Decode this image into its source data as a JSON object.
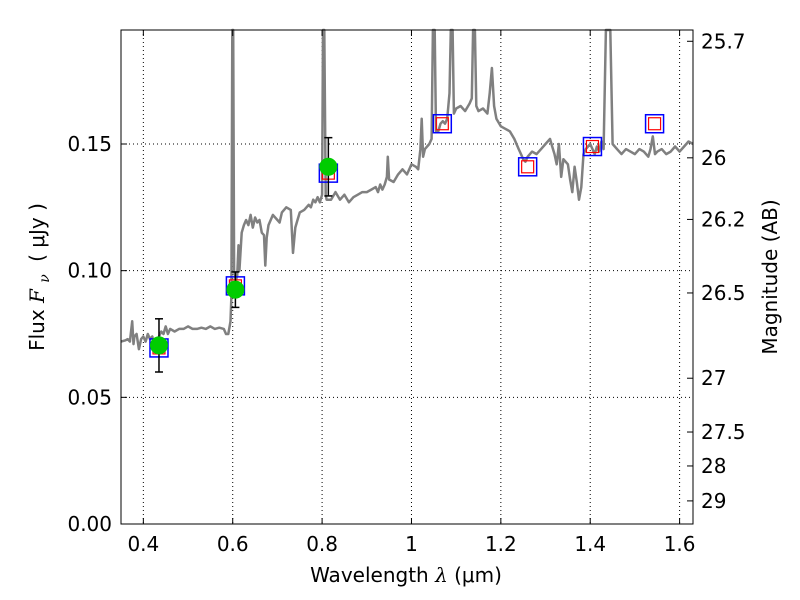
{
  "chart_data": {
    "type": "scatter",
    "xlabel_prefix": "Wavelength ",
    "xlabel_symbol": "λ",
    "xlabel_unit": "(μm)",
    "ylabel_prefix": "Flux ",
    "ylabel_symbol": "F",
    "ylabel_sub": "ν",
    "ylabel_unit": "( μJy )",
    "y2label": "Magnitude (AB)",
    "xlim": [
      0.35,
      1.63
    ],
    "ylim": [
      0.0,
      0.195
    ],
    "x_ticks": [
      {
        "value": 0.4,
        "label": "0.4"
      },
      {
        "value": 0.6,
        "label": "0.6"
      },
      {
        "value": 0.8,
        "label": "0.8"
      },
      {
        "value": 1.0,
        "label": "1"
      },
      {
        "value": 1.2,
        "label": "1.2"
      },
      {
        "value": 1.4,
        "label": "1.4"
      },
      {
        "value": 1.6,
        "label": "1.6"
      }
    ],
    "y_ticks": [
      {
        "value": 0.0,
        "label": "0.00"
      },
      {
        "value": 0.05,
        "label": "0.05"
      },
      {
        "value": 0.1,
        "label": "0.10"
      },
      {
        "value": 0.15,
        "label": "0.15"
      }
    ],
    "mag_ticks": [
      {
        "mag": 25.7,
        "label": "25.7"
      },
      {
        "mag": 26,
        "label": "26"
      },
      {
        "mag": 26.2,
        "label": "26.2"
      },
      {
        "mag": 26.5,
        "label": "26.5"
      },
      {
        "mag": 27,
        "label": "27"
      },
      {
        "mag": 27.5,
        "label": "27.5"
      },
      {
        "mag": 28,
        "label": "28"
      },
      {
        "mag": 29,
        "label": "29"
      }
    ],
    "grid": true,
    "colors": {
      "spectrum": "#808080",
      "observed": "#00cc00",
      "errorbar": "#000000",
      "model_outer": "#0000ff",
      "model_inner": "#ff0000",
      "grid": "#000000"
    },
    "series": [
      {
        "name": "model spectrum",
        "style": "line",
        "points": [
          [
            0.35,
            0.072
          ],
          [
            0.36,
            0.0725
          ],
          [
            0.365,
            0.073
          ],
          [
            0.37,
            0.072
          ],
          [
            0.375,
            0.08
          ],
          [
            0.378,
            0.071
          ],
          [
            0.38,
            0.074
          ],
          [
            0.385,
            0.075
          ],
          [
            0.39,
            0.069
          ],
          [
            0.395,
            0.073
          ],
          [
            0.4,
            0.074
          ],
          [
            0.405,
            0.072
          ],
          [
            0.41,
            0.075
          ],
          [
            0.415,
            0.073
          ],
          [
            0.42,
            0.074
          ],
          [
            0.425,
            0.07
          ],
          [
            0.43,
            0.072
          ],
          [
            0.435,
            0.074
          ],
          [
            0.44,
            0.076
          ],
          [
            0.445,
            0.075
          ],
          [
            0.45,
            0.078
          ],
          [
            0.455,
            0.075
          ],
          [
            0.46,
            0.077
          ],
          [
            0.47,
            0.076
          ],
          [
            0.48,
            0.077
          ],
          [
            0.49,
            0.077
          ],
          [
            0.5,
            0.078
          ],
          [
            0.51,
            0.077
          ],
          [
            0.52,
            0.077
          ],
          [
            0.53,
            0.0775
          ],
          [
            0.54,
            0.077
          ],
          [
            0.55,
            0.078
          ],
          [
            0.56,
            0.077
          ],
          [
            0.57,
            0.0775
          ],
          [
            0.58,
            0.077
          ],
          [
            0.585,
            0.075
          ],
          [
            0.59,
            0.075
          ],
          [
            0.595,
            0.08
          ],
          [
            0.597,
            0.09
          ],
          [
            0.599,
            0.195
          ],
          [
            0.601,
            0.195
          ],
          [
            0.603,
            0.1
          ],
          [
            0.607,
            0.096
          ],
          [
            0.61,
            0.098
          ],
          [
            0.613,
            0.11
          ],
          [
            0.615,
            0.1
          ],
          [
            0.62,
            0.115
          ],
          [
            0.625,
            0.118
          ],
          [
            0.63,
            0.12
          ],
          [
            0.635,
            0.118
          ],
          [
            0.64,
            0.122
          ],
          [
            0.645,
            0.117
          ],
          [
            0.65,
            0.121
          ],
          [
            0.655,
            0.119
          ],
          [
            0.66,
            0.12
          ],
          [
            0.665,
            0.115
          ],
          [
            0.67,
            0.114
          ],
          [
            0.673,
            0.102
          ],
          [
            0.676,
            0.113
          ],
          [
            0.68,
            0.118
          ],
          [
            0.69,
            0.122
          ],
          [
            0.7,
            0.12
          ],
          [
            0.705,
            0.119
          ],
          [
            0.71,
            0.123
          ],
          [
            0.72,
            0.125
          ],
          [
            0.73,
            0.124
          ],
          [
            0.735,
            0.107
          ],
          [
            0.74,
            0.117
          ],
          [
            0.745,
            0.12
          ],
          [
            0.75,
            0.123
          ],
          [
            0.76,
            0.124
          ],
          [
            0.77,
            0.126
          ],
          [
            0.775,
            0.125
          ],
          [
            0.78,
            0.128
          ],
          [
            0.785,
            0.127
          ],
          [
            0.79,
            0.129
          ],
          [
            0.795,
            0.127
          ],
          [
            0.8,
            0.13
          ],
          [
            0.802,
            0.195
          ],
          [
            0.805,
            0.195
          ],
          [
            0.808,
            0.13
          ],
          [
            0.81,
            0.128
          ],
          [
            0.82,
            0.128
          ],
          [
            0.83,
            0.131
          ],
          [
            0.84,
            0.128
          ],
          [
            0.85,
            0.13
          ],
          [
            0.86,
            0.127
          ],
          [
            0.87,
            0.129
          ],
          [
            0.88,
            0.13
          ],
          [
            0.89,
            0.131
          ],
          [
            0.9,
            0.131
          ],
          [
            0.91,
            0.132
          ],
          [
            0.92,
            0.133
          ],
          [
            0.925,
            0.131
          ],
          [
            0.93,
            0.134
          ],
          [
            0.935,
            0.132
          ],
          [
            0.94,
            0.134
          ],
          [
            0.945,
            0.137
          ],
          [
            0.947,
            0.145
          ],
          [
            0.95,
            0.136
          ],
          [
            0.96,
            0.135
          ],
          [
            0.97,
            0.138
          ],
          [
            0.98,
            0.14
          ],
          [
            0.99,
            0.138
          ],
          [
            1.0,
            0.142
          ],
          [
            1.01,
            0.141
          ],
          [
            1.015,
            0.14
          ],
          [
            1.02,
            0.148
          ],
          [
            1.023,
            0.16
          ],
          [
            1.026,
            0.145
          ],
          [
            1.03,
            0.148
          ],
          [
            1.04,
            0.15
          ],
          [
            1.045,
            0.152
          ],
          [
            1.048,
            0.195
          ],
          [
            1.052,
            0.195
          ],
          [
            1.055,
            0.155
          ],
          [
            1.06,
            0.155
          ],
          [
            1.065,
            0.158
          ],
          [
            1.07,
            0.159
          ],
          [
            1.075,
            0.158
          ],
          [
            1.08,
            0.16
          ],
          [
            1.085,
            0.17
          ],
          [
            1.088,
            0.195
          ],
          [
            1.092,
            0.195
          ],
          [
            1.095,
            0.162
          ],
          [
            1.1,
            0.164
          ],
          [
            1.11,
            0.165
          ],
          [
            1.12,
            0.163
          ],
          [
            1.13,
            0.166
          ],
          [
            1.135,
            0.168
          ],
          [
            1.138,
            0.195
          ],
          [
            1.142,
            0.195
          ],
          [
            1.145,
            0.165
          ],
          [
            1.15,
            0.163
          ],
          [
            1.16,
            0.164
          ],
          [
            1.17,
            0.162
          ],
          [
            1.175,
            0.17
          ],
          [
            1.18,
            0.18
          ],
          [
            1.185,
            0.165
          ],
          [
            1.19,
            0.16
          ],
          [
            1.2,
            0.157
          ],
          [
            1.21,
            0.156
          ],
          [
            1.22,
            0.155
          ],
          [
            1.23,
            0.152
          ],
          [
            1.24,
            0.148
          ],
          [
            1.245,
            0.146
          ],
          [
            1.25,
            0.144
          ],
          [
            1.255,
            0.143
          ],
          [
            1.26,
            0.145
          ],
          [
            1.27,
            0.147
          ],
          [
            1.28,
            0.146
          ],
          [
            1.29,
            0.148
          ],
          [
            1.3,
            0.15
          ],
          [
            1.31,
            0.152
          ],
          [
            1.315,
            0.149
          ],
          [
            1.32,
            0.146
          ],
          [
            1.325,
            0.142
          ],
          [
            1.33,
            0.15
          ],
          [
            1.335,
            0.137
          ],
          [
            1.34,
            0.144
          ],
          [
            1.35,
            0.142
          ],
          [
            1.355,
            0.136
          ],
          [
            1.36,
            0.131
          ],
          [
            1.365,
            0.141
          ],
          [
            1.37,
            0.135
          ],
          [
            1.375,
            0.128
          ],
          [
            1.38,
            0.133
          ],
          [
            1.385,
            0.146
          ],
          [
            1.39,
            0.148
          ],
          [
            1.4,
            0.15
          ],
          [
            1.405,
            0.148
          ],
          [
            1.41,
            0.146
          ],
          [
            1.415,
            0.149
          ],
          [
            1.42,
            0.147
          ],
          [
            1.425,
            0.151
          ],
          [
            1.43,
            0.148
          ],
          [
            1.435,
            0.195
          ],
          [
            1.445,
            0.195
          ],
          [
            1.45,
            0.15
          ],
          [
            1.46,
            0.148
          ],
          [
            1.47,
            0.146
          ],
          [
            1.48,
            0.148
          ],
          [
            1.49,
            0.147
          ],
          [
            1.5,
            0.146
          ],
          [
            1.51,
            0.148
          ],
          [
            1.52,
            0.147
          ],
          [
            1.53,
            0.145
          ],
          [
            1.535,
            0.148
          ],
          [
            1.54,
            0.153
          ],
          [
            1.545,
            0.146
          ],
          [
            1.55,
            0.147
          ],
          [
            1.56,
            0.148
          ],
          [
            1.57,
            0.146
          ],
          [
            1.58,
            0.147
          ],
          [
            1.59,
            0.149
          ],
          [
            1.6,
            0.147
          ],
          [
            1.61,
            0.149
          ],
          [
            1.62,
            0.151
          ],
          [
            1.63,
            0.15
          ]
        ]
      },
      {
        "name": "observed photometry",
        "style": "circle-errorbar",
        "points": [
          {
            "x": 0.435,
            "y": 0.0705,
            "err": 0.0105
          },
          {
            "x": 0.606,
            "y": 0.0925,
            "err": 0.007
          },
          {
            "x": 0.814,
            "y": 0.141,
            "err": 0.0115
          }
        ]
      },
      {
        "name": "model photometry",
        "style": "square",
        "points": [
          {
            "x": 0.435,
            "y": 0.0695
          },
          {
            "x": 0.606,
            "y": 0.094
          },
          {
            "x": 0.814,
            "y": 0.1385
          },
          {
            "x": 1.069,
            "y": 0.158
          },
          {
            "x": 1.26,
            "y": 0.141
          },
          {
            "x": 1.405,
            "y": 0.149
          },
          {
            "x": 1.544,
            "y": 0.158
          }
        ]
      }
    ]
  }
}
